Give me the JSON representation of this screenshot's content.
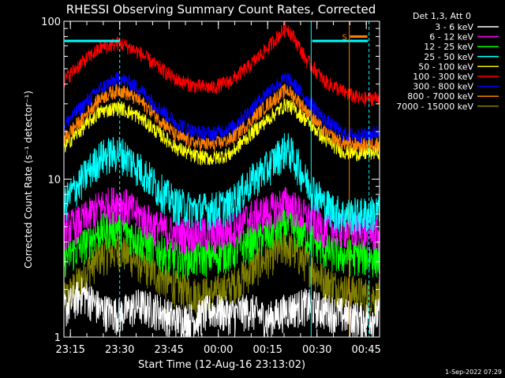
{
  "chart_data": {
    "type": "line",
    "title": "RHESSI Observing Summary Count Rates, Corrected",
    "xlabel": "Start Time (12-Aug-16 23:13:02)",
    "ylabel": "Corrected Count Rate (s⁻¹ detector⁻¹)",
    "y_scale": "log",
    "ylim": [
      1,
      100
    ],
    "y_ticks": [
      {
        "value": 1,
        "label": "1"
      },
      {
        "value": 10,
        "label": "10"
      },
      {
        "value": 100,
        "label": "100"
      }
    ],
    "x_unit": "minutes after 23:13:02",
    "xlim": [
      0,
      96
    ],
    "x_ticks": [
      {
        "value": 1.97,
        "label": "23:15"
      },
      {
        "value": 16.97,
        "label": "23:30"
      },
      {
        "value": 31.97,
        "label": "23:45"
      },
      {
        "value": 46.97,
        "label": "00:00"
      },
      {
        "value": 61.97,
        "label": "00:15"
      },
      {
        "value": 76.97,
        "label": "00:30"
      },
      {
        "value": 91.97,
        "label": "00:45"
      }
    ],
    "legend_title": "Det 1,3, Att 0",
    "legend_position": "outside-top-right",
    "series": [
      {
        "name": "3 - 6 keV",
        "color": "#ffffff",
        "profile": [
          1.5,
          1.9,
          1.5,
          1.4,
          1.6,
          1.5,
          1.3,
          1.3,
          1.5,
          1.4,
          1.5,
          1.3,
          1.5,
          1.6,
          1.5,
          1.4,
          1.3,
          1.4
        ]
      },
      {
        "name": "6 - 12 keV",
        "color": "#ff00ff",
        "profile": [
          4.8,
          5.5,
          6.8,
          7.3,
          6.0,
          5.0,
          4.5,
          4.6,
          4.5,
          4.8,
          5.8,
          6.3,
          7.2,
          5.8,
          5.0,
          4.9,
          4.8,
          4.6
        ]
      },
      {
        "name": "12 - 25 keV",
        "color": "#00ff00",
        "profile": [
          3.2,
          3.8,
          4.8,
          5.0,
          4.2,
          3.6,
          3.2,
          3.2,
          3.3,
          3.5,
          4.0,
          4.5,
          5.2,
          4.5,
          3.6,
          3.3,
          3.3,
          3.2
        ]
      },
      {
        "name": "25 - 50 keV",
        "color": "#00ffff",
        "profile": [
          7.0,
          10.0,
          14.0,
          15.0,
          12.0,
          9.0,
          7.0,
          6.5,
          6.5,
          7.0,
          9.5,
          12.0,
          16.0,
          10.0,
          7.0,
          6.0,
          6.0,
          6.3
        ]
      },
      {
        "name": "50 - 100 keV",
        "color": "#ffff00",
        "profile": [
          16.0,
          21.0,
          27.0,
          28.5,
          25.0,
          20.0,
          16.0,
          14.0,
          13.5,
          14.5,
          19.0,
          24.0,
          30.0,
          24.0,
          18.0,
          15.0,
          14.5,
          15.0
        ]
      },
      {
        "name": "100 - 300 keV",
        "color": "#ff0000",
        "profile": [
          42.0,
          55.0,
          68.0,
          73.0,
          64.0,
          52.0,
          43.0,
          39.0,
          38.0,
          42.0,
          52.0,
          68.0,
          92.0,
          58.0,
          42.0,
          36.0,
          32.0,
          33.0
        ]
      },
      {
        "name": "300 - 800 keV",
        "color": "#0000ff",
        "profile": [
          22.0,
          29.0,
          38.0,
          44.0,
          38.0,
          29.0,
          23.0,
          20.0,
          19.5,
          21.0,
          27.0,
          36.0,
          44.0,
          33.0,
          24.0,
          19.5,
          19.0,
          20.0
        ]
      },
      {
        "name": "800 - 7000 keV",
        "color": "#ff8000",
        "profile": [
          18.0,
          24.0,
          33.0,
          37.0,
          32.0,
          25.0,
          19.0,
          17.0,
          16.5,
          18.0,
          23.0,
          30.0,
          37.0,
          28.0,
          20.0,
          17.0,
          16.5,
          17.0
        ]
      },
      {
        "name": "7000 - 15000 keV",
        "color": "#808000",
        "profile": [
          1.7,
          2.4,
          3.3,
          3.6,
          3.0,
          2.5,
          2.1,
          1.9,
          1.9,
          2.1,
          2.6,
          3.2,
          3.8,
          3.0,
          2.3,
          2.0,
          1.9,
          1.8
        ]
      }
    ],
    "annotations": {
      "cyan_bar_segments": [
        {
          "x": [
            0.2,
            17.0
          ],
          "y": 75
        },
        {
          "x": [
            75.5,
            92.5
          ],
          "y": 75
        }
      ],
      "dashed_vertical_lines_x": [
        16.97,
        92.8
      ],
      "solid_vertical_lines": [
        {
          "x": 75.2,
          "color": "#00ffff"
        },
        {
          "x": 86.8,
          "color": "#ff8000"
        }
      ],
      "saa_marker": {
        "label": "S",
        "x": [
          87.0,
          92.3
        ],
        "y": 80,
        "color": "#ff8000"
      }
    },
    "timestamp": "1-Sep-2022 07:29"
  }
}
